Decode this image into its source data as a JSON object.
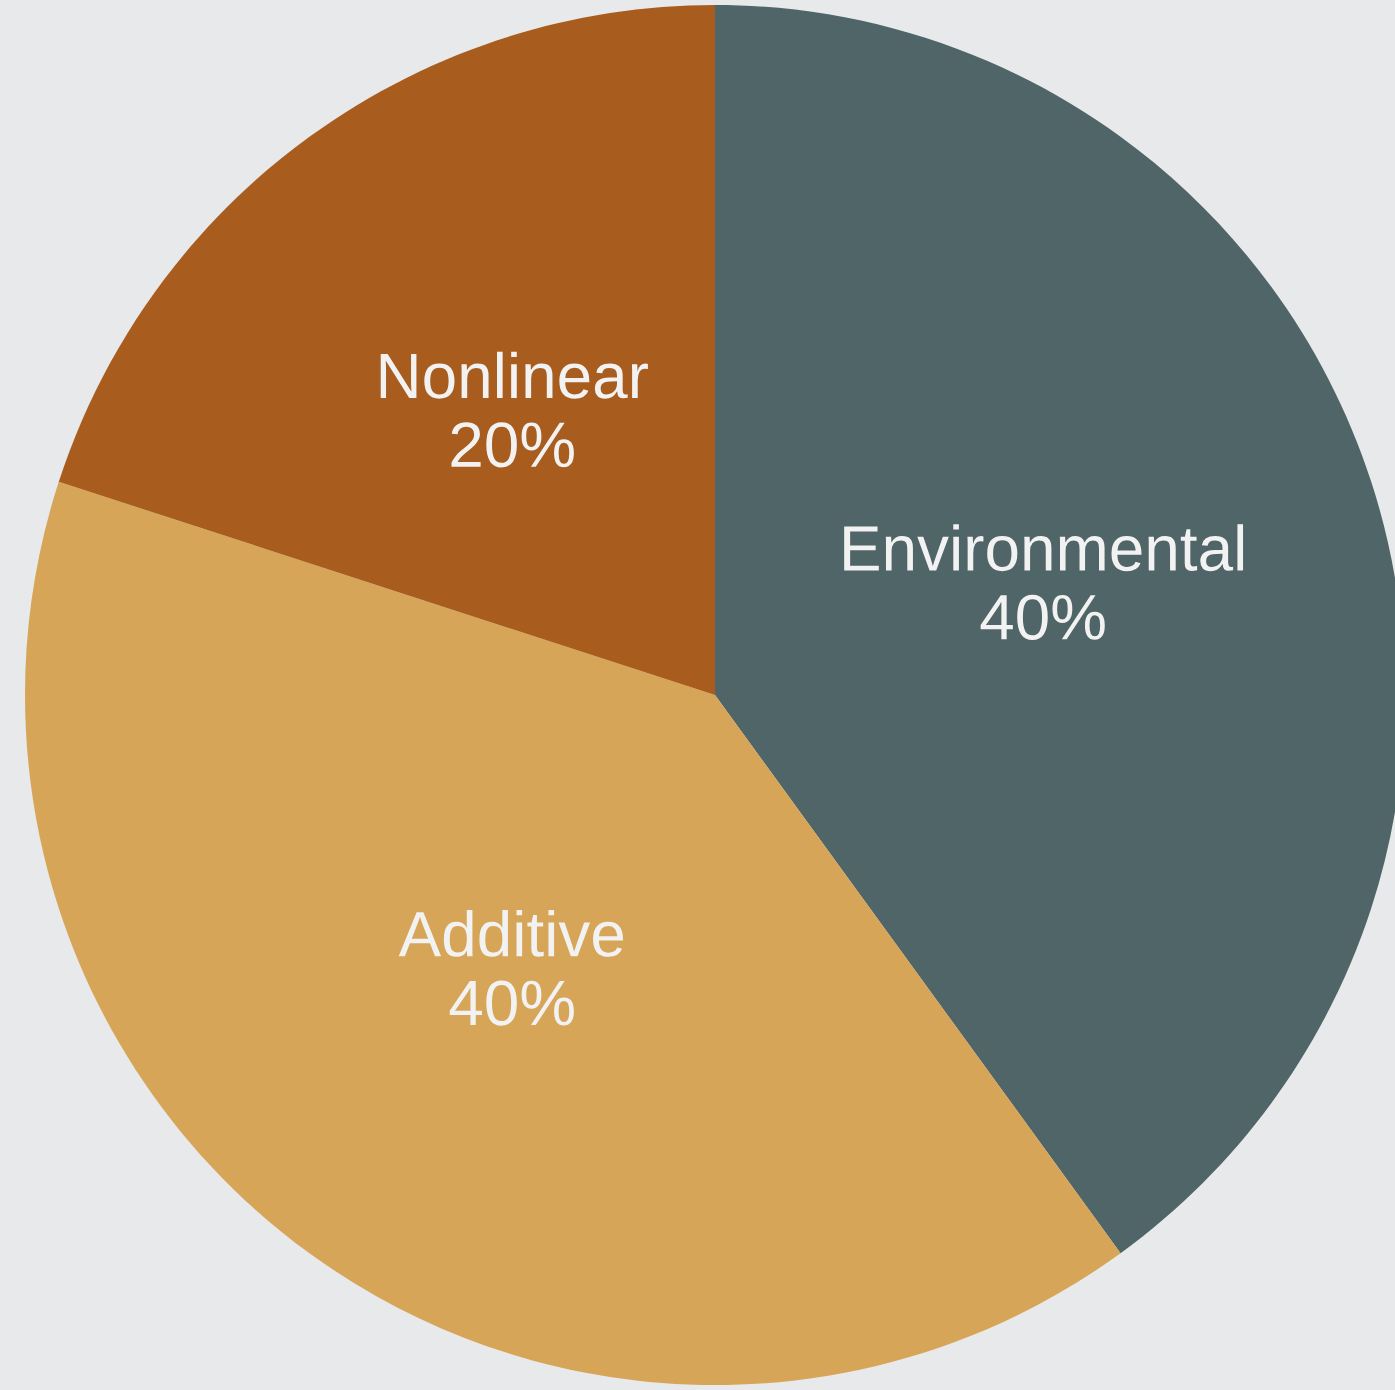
{
  "chart_data": {
    "type": "pie",
    "categories": [
      "Environmental",
      "Additive",
      "Nonlinear"
    ],
    "values": [
      40,
      40,
      20
    ],
    "value_labels": [
      "40%",
      "40%",
      "20%"
    ],
    "colors": [
      "#506567",
      "#d7a558",
      "#a85c1e"
    ]
  }
}
